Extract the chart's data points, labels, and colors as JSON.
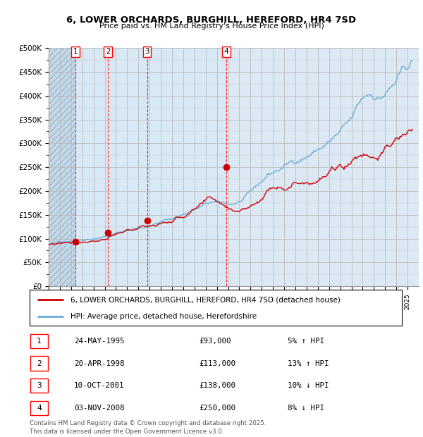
{
  "title_line1": "6, LOWER ORCHARDS, BURGHILL, HEREFORD, HR4 7SD",
  "title_line2": "Price paid vs. HM Land Registry's House Price Index (HPI)",
  "hpi_color": "#6baed6",
  "price_color": "#cc0000",
  "dot_color": "#cc0000",
  "bg_color": "#dce9f5",
  "ylim": [
    0,
    500000
  ],
  "yticks": [
    0,
    50000,
    100000,
    150000,
    200000,
    250000,
    300000,
    350000,
    400000,
    450000,
    500000
  ],
  "ytick_labels": [
    "£0",
    "£50K",
    "£100K",
    "£150K",
    "£200K",
    "£250K",
    "£300K",
    "£350K",
    "£400K",
    "£450K",
    "£500K"
  ],
  "xstart": 1993,
  "xend": 2026,
  "sale_dates": [
    1995.39,
    1998.3,
    2001.77,
    2008.84
  ],
  "sale_prices": [
    93000,
    113000,
    138000,
    250000
  ],
  "sale_labels": [
    "1",
    "2",
    "3",
    "4"
  ],
  "legend_price_label": "6, LOWER ORCHARDS, BURGHILL, HEREFORD, HR4 7SD (detached house)",
  "legend_hpi_label": "HPI: Average price, detached house, Herefordshire",
  "table_rows": [
    {
      "num": "1",
      "date": "24-MAY-1995",
      "price": "£93,000",
      "change": "5% ↑ HPI"
    },
    {
      "num": "2",
      "date": "20-APR-1998",
      "price": "£113,000",
      "change": "13% ↑ HPI"
    },
    {
      "num": "3",
      "date": "10-OCT-2001",
      "price": "£138,000",
      "change": "10% ↓ HPI"
    },
    {
      "num": "4",
      "date": "03-NOV-2008",
      "price": "£250,000",
      "change": "8% ↓ HPI"
    }
  ],
  "footnote": "Contains HM Land Registry data © Crown copyright and database right 2025.\nThis data is licensed under the Open Government Licence v3.0."
}
